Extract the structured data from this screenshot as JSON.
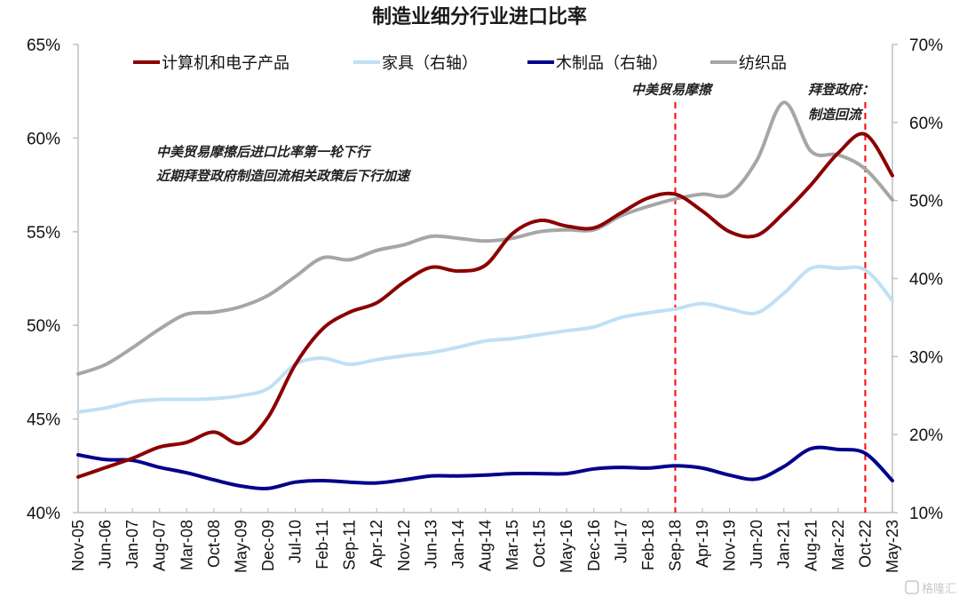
{
  "chart_data": {
    "type": "line",
    "title": "制造业细分行业进口比率",
    "left_axis": {
      "ylim": [
        40,
        65
      ],
      "ticks": [
        "40%",
        "45%",
        "50%",
        "55%",
        "60%",
        "65%"
      ],
      "tick_values": [
        40,
        45,
        50,
        55,
        60,
        65
      ]
    },
    "right_axis": {
      "ylim": [
        10,
        70
      ],
      "ticks": [
        "10%",
        "20%",
        "30%",
        "40%",
        "50%",
        "60%",
        "70%"
      ],
      "tick_values": [
        10,
        20,
        30,
        40,
        50,
        60,
        70
      ]
    },
    "x_ticks": [
      "Nov-05",
      "Jun-06",
      "Jan-07",
      "Aug-07",
      "Mar-08",
      "Oct-08",
      "May-09",
      "Dec-09",
      "Jul-10",
      "Feb-11",
      "Sep-11",
      "Apr-12",
      "Nov-12",
      "Jun-13",
      "Jan-14",
      "Aug-14",
      "Mar-15",
      "Oct-15",
      "May-16",
      "Dec-16",
      "Jul-17",
      "Feb-18",
      "Sep-18",
      "Apr-19",
      "Nov-19",
      "Jun-20",
      "Jan-21",
      "Aug-21",
      "Mar-22",
      "Oct-22",
      "May-23"
    ],
    "x_months_span": 210,
    "grid": false,
    "legend_position": "top",
    "series": [
      {
        "name": "计算机和电子产品",
        "axis": "left",
        "color": "#8b0000",
        "values": [
          41.9,
          42.4,
          42.9,
          43.5,
          43.75,
          44.3,
          43.7,
          45.1,
          47.9,
          49.8,
          50.7,
          51.2,
          52.3,
          53.1,
          52.9,
          53.2,
          54.9,
          55.6,
          55.3,
          55.2,
          56.0,
          56.8,
          57.0,
          56.1,
          55.0,
          54.8,
          56.0,
          57.5,
          59.2,
          60.2,
          58.0
        ]
      },
      {
        "name": "家具（右轴）",
        "axis": "right",
        "color": "#bfe0f5",
        "values": [
          22.9,
          23.4,
          24.2,
          24.5,
          24.5,
          24.6,
          25.0,
          25.9,
          29.0,
          29.8,
          29.0,
          29.6,
          30.1,
          30.5,
          31.2,
          32.0,
          32.3,
          32.8,
          33.3,
          33.8,
          35.0,
          35.6,
          36.1,
          36.8,
          36.1,
          35.6,
          38.1,
          41.3,
          41.3,
          41.1,
          37.2
        ]
      },
      {
        "name": "木制品（右轴）",
        "axis": "right",
        "color": "#00008b",
        "values": [
          17.4,
          16.8,
          16.7,
          15.8,
          15.1,
          14.2,
          13.4,
          13.1,
          13.9,
          14.1,
          13.9,
          13.8,
          14.2,
          14.7,
          14.7,
          14.8,
          15.0,
          15.0,
          15.0,
          15.6,
          15.8,
          15.7,
          16.0,
          15.7,
          14.8,
          14.3,
          15.9,
          18.2,
          18.1,
          17.6,
          14.1
        ]
      },
      {
        "name": "纺织品",
        "axis": "left",
        "color": "#a6a6a6",
        "values": [
          47.4,
          47.9,
          48.8,
          49.8,
          50.6,
          50.7,
          51.0,
          51.6,
          52.6,
          53.6,
          53.5,
          54.0,
          54.3,
          54.75,
          54.65,
          54.5,
          54.65,
          55.0,
          55.1,
          55.1,
          55.85,
          56.35,
          56.75,
          57.0,
          57.0,
          58.8,
          61.9,
          59.3,
          59.1,
          58.35,
          56.7
        ]
      }
    ],
    "event_lines": [
      {
        "label": "中美贸易摩擦",
        "at": "Sep-18",
        "color": "#ff0000"
      },
      {
        "label_line1": "拜登政府：",
        "label_line2": "制造回流",
        "at": "Oct-22",
        "color": "#ff0000"
      }
    ],
    "annotation": {
      "line1": "中美贸易摩擦后进口比率第一轮下行",
      "line2": "近期拜登政府制造回流相关政策后下行加速"
    }
  },
  "watermark": "格隆汇"
}
